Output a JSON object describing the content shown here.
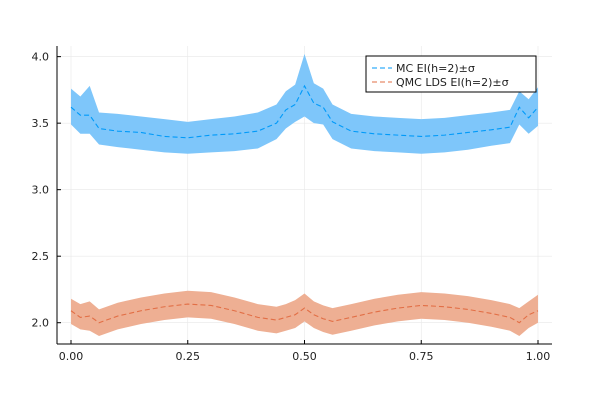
{
  "chart_data": {
    "type": "area",
    "title": "",
    "xlabel": "",
    "ylabel": "",
    "xlim": [
      -0.03,
      1.03
    ],
    "ylim": [
      1.84,
      4.08
    ],
    "x_ticks": [
      0.0,
      0.25,
      0.5,
      0.75,
      1.0
    ],
    "x_tick_labels": [
      "0.00",
      "0.25",
      "0.50",
      "0.75",
      "1.00"
    ],
    "y_ticks": [
      2.0,
      2.5,
      3.0,
      3.5,
      4.0
    ],
    "y_tick_labels": [
      "2.0",
      "2.5",
      "3.0",
      "3.5",
      "4.0"
    ],
    "grid": true,
    "legend_position": "top-right",
    "series": [
      {
        "name": "MC EI(h=2)±σ",
        "color": "#009af9",
        "fill_color": "#7ec6fa",
        "x": [
          0.0,
          0.02,
          0.04,
          0.06,
          0.1,
          0.15,
          0.2,
          0.25,
          0.3,
          0.35,
          0.4,
          0.44,
          0.46,
          0.48,
          0.5,
          0.52,
          0.54,
          0.56,
          0.6,
          0.65,
          0.7,
          0.75,
          0.8,
          0.85,
          0.9,
          0.94,
          0.96,
          0.98,
          1.0
        ],
        "mean": [
          3.62,
          3.56,
          3.56,
          3.46,
          3.44,
          3.43,
          3.4,
          3.39,
          3.41,
          3.42,
          3.44,
          3.5,
          3.6,
          3.64,
          3.78,
          3.65,
          3.62,
          3.51,
          3.44,
          3.42,
          3.41,
          3.4,
          3.41,
          3.43,
          3.45,
          3.47,
          3.62,
          3.54,
          3.62
        ],
        "lower": [
          3.49,
          3.42,
          3.42,
          3.34,
          3.32,
          3.3,
          3.28,
          3.27,
          3.28,
          3.29,
          3.31,
          3.38,
          3.46,
          3.51,
          3.55,
          3.5,
          3.49,
          3.38,
          3.31,
          3.29,
          3.28,
          3.27,
          3.28,
          3.3,
          3.33,
          3.35,
          3.49,
          3.42,
          3.48
        ],
        "upper": [
          3.76,
          3.7,
          3.78,
          3.58,
          3.57,
          3.55,
          3.53,
          3.51,
          3.53,
          3.55,
          3.58,
          3.64,
          3.74,
          3.79,
          4.02,
          3.8,
          3.76,
          3.64,
          3.57,
          3.55,
          3.54,
          3.53,
          3.54,
          3.56,
          3.58,
          3.6,
          3.74,
          3.68,
          3.77
        ]
      },
      {
        "name": "QMC LDS EI(h=2)±σ",
        "color": "#e26f46",
        "fill_color": "#eeaf93",
        "x": [
          0.0,
          0.02,
          0.04,
          0.06,
          0.1,
          0.15,
          0.2,
          0.25,
          0.3,
          0.35,
          0.4,
          0.44,
          0.46,
          0.48,
          0.5,
          0.52,
          0.54,
          0.56,
          0.6,
          0.65,
          0.7,
          0.75,
          0.8,
          0.85,
          0.9,
          0.94,
          0.96,
          0.98,
          1.0
        ],
        "mean": [
          2.09,
          2.04,
          2.05,
          2.0,
          2.05,
          2.09,
          2.12,
          2.14,
          2.13,
          2.09,
          2.04,
          2.02,
          2.04,
          2.06,
          2.11,
          2.06,
          2.03,
          2.01,
          2.04,
          2.08,
          2.11,
          2.13,
          2.12,
          2.1,
          2.07,
          2.04,
          2.0,
          2.06,
          2.09
        ],
        "lower": [
          1.99,
          1.95,
          1.94,
          1.9,
          1.95,
          1.99,
          2.02,
          2.04,
          2.03,
          1.99,
          1.94,
          1.92,
          1.94,
          1.96,
          2.01,
          1.96,
          1.93,
          1.91,
          1.94,
          1.98,
          2.01,
          2.03,
          2.02,
          2.0,
          1.97,
          1.94,
          1.9,
          1.96,
          2.0
        ],
        "upper": [
          2.18,
          2.14,
          2.16,
          2.1,
          2.15,
          2.19,
          2.22,
          2.24,
          2.23,
          2.19,
          2.14,
          2.12,
          2.14,
          2.17,
          2.22,
          2.16,
          2.13,
          2.11,
          2.14,
          2.18,
          2.21,
          2.23,
          2.22,
          2.2,
          2.17,
          2.14,
          2.11,
          2.16,
          2.21
        ]
      }
    ]
  }
}
